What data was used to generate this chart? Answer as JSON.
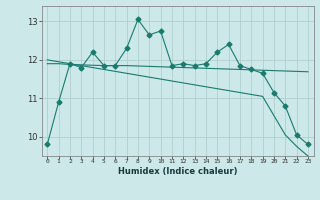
{
  "xlabel": "Humidex (Indice chaleur)",
  "x": [
    0,
    1,
    2,
    3,
    4,
    5,
    6,
    7,
    8,
    9,
    10,
    11,
    12,
    13,
    14,
    15,
    16,
    17,
    18,
    19,
    20,
    21,
    22,
    23
  ],
  "y_main": [
    9.8,
    10.9,
    11.9,
    11.8,
    12.2,
    11.85,
    11.85,
    12.3,
    13.05,
    12.65,
    12.75,
    11.85,
    11.9,
    11.85,
    11.9,
    12.2,
    12.4,
    11.85,
    11.75,
    11.65,
    11.15,
    10.8,
    10.05,
    9.8
  ],
  "y_avg": [
    11.9,
    11.9,
    11.88,
    11.87,
    11.86,
    11.85,
    11.85,
    11.85,
    11.84,
    11.83,
    11.82,
    11.81,
    11.8,
    11.79,
    11.78,
    11.77,
    11.76,
    11.75,
    11.74,
    11.73,
    11.72,
    11.71,
    11.7,
    11.69
  ],
  "y_trend": [
    12.0,
    11.95,
    11.9,
    11.85,
    11.8,
    11.75,
    11.7,
    11.65,
    11.6,
    11.55,
    11.5,
    11.45,
    11.4,
    11.35,
    11.3,
    11.25,
    11.2,
    11.15,
    11.1,
    11.05,
    10.55,
    10.05,
    9.75,
    9.5
  ],
  "ylim": [
    9.5,
    13.4
  ],
  "yticks": [
    10,
    11,
    12,
    13
  ],
  "color": "#1a7a6e",
  "bg_color": "#cce8e8",
  "grid_color": "#aacccc",
  "marker": "D",
  "marker_size": 2.5,
  "line_width": 0.8
}
